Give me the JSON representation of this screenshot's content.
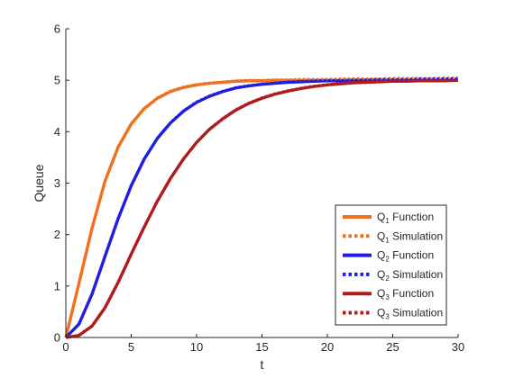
{
  "chart_data": {
    "type": "line",
    "title": "",
    "xlabel": "t",
    "ylabel": "Queue",
    "xlim": [
      0,
      30
    ],
    "ylim": [
      0,
      6
    ],
    "x_ticks": [
      "0",
      "5",
      "10",
      "15",
      "20",
      "25",
      "30"
    ],
    "y_ticks": [
      "0",
      "1",
      "2",
      "3",
      "4",
      "5",
      "6"
    ],
    "grid": false,
    "legend_placement": "bottom-right",
    "x": [
      0,
      1,
      2,
      3,
      4,
      5,
      6,
      7,
      8,
      9,
      10,
      11,
      12,
      13,
      14,
      15,
      16,
      17,
      18,
      19,
      20,
      21,
      22,
      23,
      24,
      25,
      26,
      27,
      28,
      29,
      30
    ],
    "series": [
      {
        "name_main": "Q",
        "name_sub": "1",
        "name_rest": " Function",
        "color": "#F07020",
        "style": "solid",
        "values": [
          0,
          1.05,
          2.12,
          3.04,
          3.7,
          4.15,
          4.45,
          4.65,
          4.78,
          4.86,
          4.91,
          4.94,
          4.96,
          4.98,
          4.99,
          4.99,
          5.0,
          5.0,
          5.0,
          5.0,
          5.0,
          5.0,
          5.0,
          5.0,
          5.0,
          5.0,
          5.0,
          5.0,
          5.0,
          5.0,
          5.0
        ]
      },
      {
        "name_main": "Q",
        "name_sub": "1",
        "name_rest": " Simulation",
        "color": "#F07020",
        "style": "dotted",
        "values": [
          0,
          1.06,
          2.13,
          3.05,
          3.71,
          4.16,
          4.46,
          4.66,
          4.79,
          4.87,
          4.92,
          4.95,
          4.97,
          4.99,
          5.0,
          5.0,
          5.01,
          5.01,
          5.02,
          5.02,
          5.02,
          5.03,
          5.03,
          5.03,
          5.03,
          5.04,
          5.04,
          5.04,
          5.04,
          5.05,
          5.05
        ]
      },
      {
        "name_main": "Q",
        "name_sub": "2",
        "name_rest": " Function",
        "color": "#1F1FE0",
        "style": "solid",
        "values": [
          0,
          0.26,
          0.84,
          1.58,
          2.31,
          2.95,
          3.47,
          3.87,
          4.17,
          4.4,
          4.57,
          4.69,
          4.78,
          4.85,
          4.89,
          4.92,
          4.94,
          4.96,
          4.97,
          4.98,
          4.99,
          4.99,
          5.0,
          5.0,
          5.0,
          5.0,
          5.0,
          5.0,
          5.0,
          5.0,
          5.0
        ]
      },
      {
        "name_main": "Q",
        "name_sub": "2",
        "name_rest": " Simulation",
        "color": "#1F1FE0",
        "style": "dotted",
        "values": [
          0,
          0.27,
          0.85,
          1.59,
          2.32,
          2.96,
          3.48,
          3.88,
          4.18,
          4.41,
          4.58,
          4.7,
          4.79,
          4.86,
          4.9,
          4.93,
          4.95,
          4.97,
          4.98,
          4.99,
          5.0,
          5.0,
          5.01,
          5.01,
          5.02,
          5.02,
          5.02,
          5.03,
          5.03,
          5.03,
          5.03
        ]
      },
      {
        "name_main": "Q",
        "name_sub": "3",
        "name_rest": " Function",
        "color": "#B01C1C",
        "style": "solid",
        "values": [
          0,
          0.04,
          0.22,
          0.58,
          1.07,
          1.62,
          2.15,
          2.65,
          3.09,
          3.47,
          3.79,
          4.05,
          4.25,
          4.42,
          4.55,
          4.65,
          4.73,
          4.79,
          4.84,
          4.88,
          4.91,
          4.93,
          4.95,
          4.96,
          4.97,
          4.98,
          4.98,
          4.99,
          4.99,
          4.99,
          5.0
        ]
      },
      {
        "name_main": "Q",
        "name_sub": "3",
        "name_rest": " Simulation",
        "color": "#B01C1C",
        "style": "dotted",
        "values": [
          0,
          0.05,
          0.23,
          0.59,
          1.08,
          1.63,
          2.16,
          2.66,
          3.1,
          3.48,
          3.8,
          4.06,
          4.26,
          4.43,
          4.56,
          4.66,
          4.74,
          4.8,
          4.85,
          4.89,
          4.92,
          4.94,
          4.96,
          4.97,
          4.98,
          4.99,
          4.99,
          5.0,
          5.0,
          5.0,
          5.0
        ]
      }
    ]
  }
}
